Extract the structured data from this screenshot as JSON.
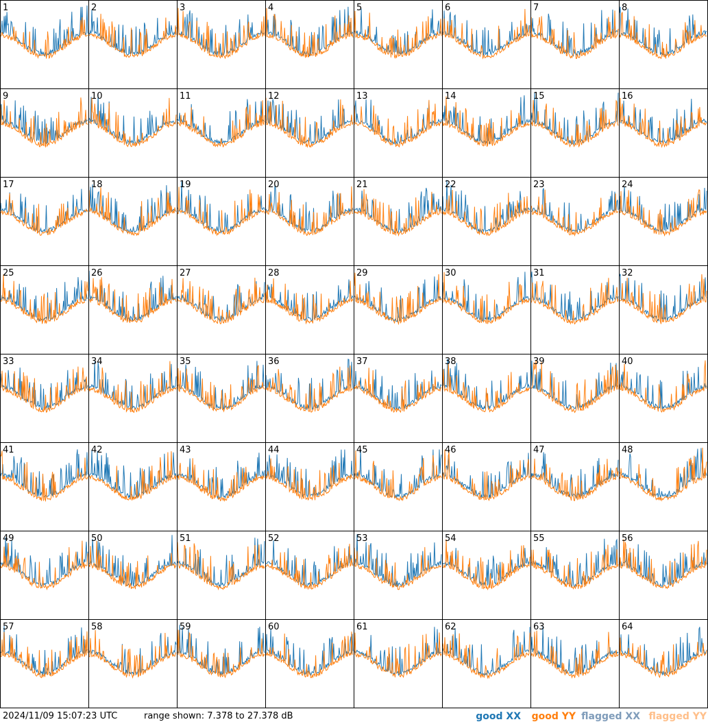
{
  "panels": [
    "1",
    "2",
    "3",
    "4",
    "5",
    "6",
    "7",
    "8",
    "9",
    "10",
    "11",
    "12",
    "13",
    "14",
    "15",
    "16",
    "17",
    "18",
    "19",
    "20",
    "21",
    "22",
    "23",
    "24",
    "25",
    "26",
    "27",
    "28",
    "29",
    "30",
    "31",
    "32",
    "33",
    "34",
    "35",
    "36",
    "37",
    "38",
    "39",
    "40",
    "41",
    "42",
    "43",
    "44",
    "45",
    "46",
    "47",
    "48",
    "49",
    "50",
    "51",
    "52",
    "53",
    "54",
    "55",
    "56",
    "57",
    "58",
    "59",
    "60",
    "61",
    "62",
    "63",
    "64"
  ],
  "footer": {
    "timestamp": "2024/11/09 15:07:23 UTC",
    "range": "range shown: 7.378 to 27.378 dB"
  },
  "legend": [
    {
      "label": "good XX",
      "color": "#1f77b4"
    },
    {
      "label": "good YY",
      "color": "#ff7f0e"
    },
    {
      "label": "flagged XX",
      "color": "#7f9cba"
    },
    {
      "label": "flagged YY",
      "color": "#ffbf8a"
    }
  ]
}
